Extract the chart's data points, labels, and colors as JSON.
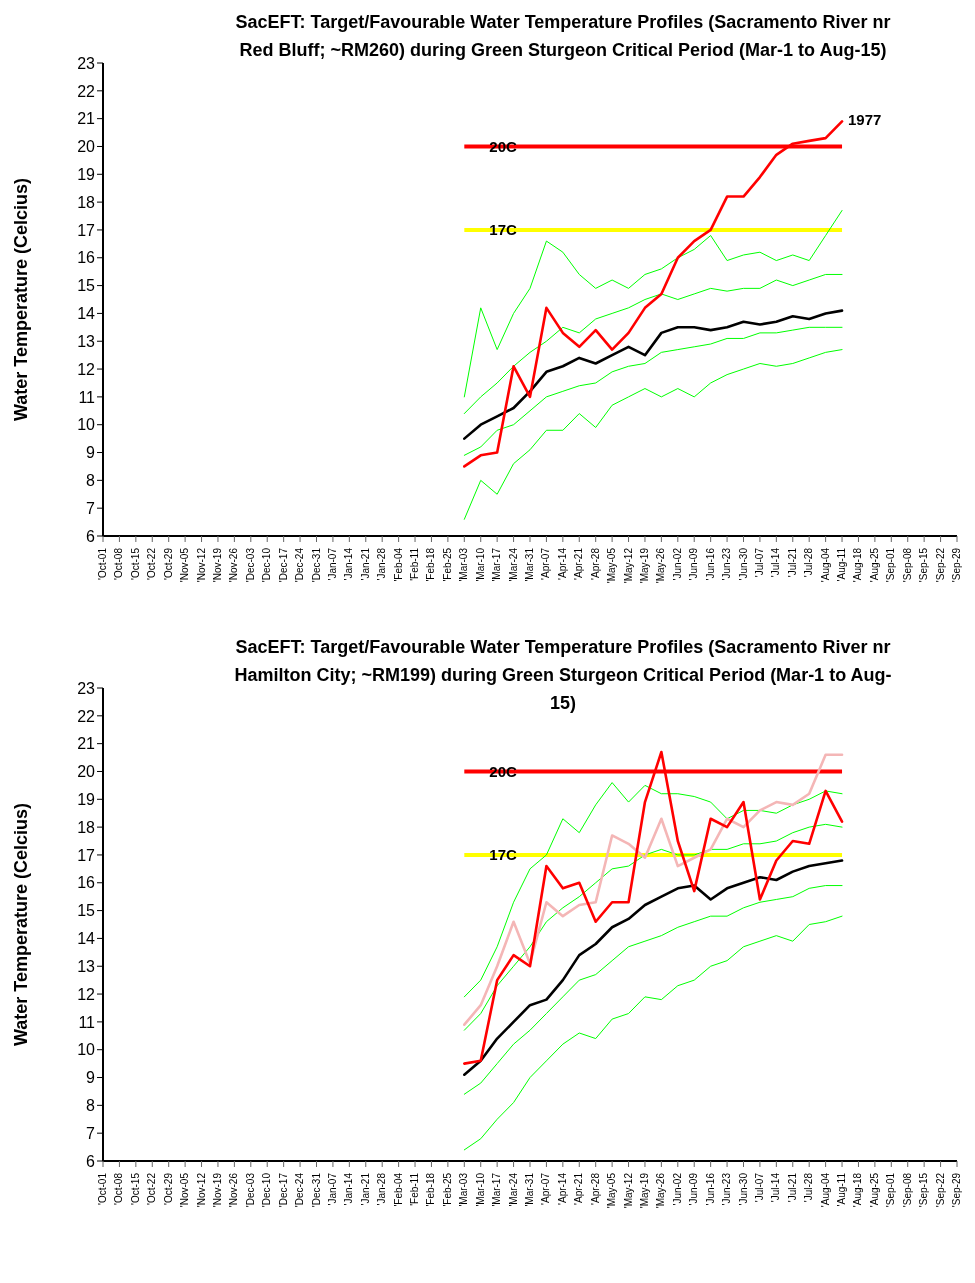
{
  "chart_data": [
    {
      "type": "line",
      "title": "SacEFT: Target/Favourable Water Temperature Profiles (Sacramento River nr Red Bluff; ~RM260) during Green Sturgeon Critical Period (Mar-1 to Aug-15)",
      "ylabel": "Water Temperature (Celcius)",
      "categories": [
        "'Oct-01",
        "'Oct-08",
        "'Oct-15",
        "'Oct-22",
        "'Oct-29",
        "'Nov-05",
        "'Nov-12",
        "'Nov-19",
        "'Nov-26",
        "'Dec-03",
        "'Dec-10",
        "'Dec-17",
        "'Dec-24",
        "'Dec-31",
        "'Jan-07",
        "'Jan-14",
        "'Jan-21",
        "'Jan-28",
        "'Feb-04",
        "'Feb-11",
        "'Feb-18",
        "'Feb-25",
        "'Mar-03",
        "'Mar-10",
        "'Mar-17",
        "'Mar-24",
        "'Mar-31",
        "'Apr-07",
        "'Apr-14",
        "'Apr-21",
        "'Apr-28",
        "'May-05",
        "'May-12",
        "'May-19",
        "'May-26",
        "'Jun-02",
        "'Jun-09",
        "'Jun-16",
        "'Jun-23",
        "'Jun-30",
        "'Jul-07",
        "'Jul-14",
        "'Jul-21",
        "'Jul-28",
        "'Aug-04",
        "'Aug-11",
        "'Aug-18",
        "'Aug-25",
        "'Sep-01",
        "'Sep-08",
        "'Sep-15",
        "'Sep-22",
        "'Sep-29"
      ],
      "series": [
        {
          "type": "line",
          "color": "#00ff00",
          "values": [
            null,
            null,
            null,
            null,
            null,
            null,
            null,
            null,
            null,
            null,
            null,
            null,
            null,
            null,
            null,
            null,
            null,
            null,
            null,
            null,
            null,
            null,
            11.0,
            14.2,
            12.7,
            14.0,
            14.9,
            16.6,
            16.2,
            15.4,
            14.9,
            15.2,
            14.9,
            15.4,
            15.6,
            16.0,
            16.3,
            16.8,
            15.9,
            16.1,
            16.2,
            15.9,
            16.1,
            15.9,
            16.8,
            17.7,
            null,
            null,
            null,
            null,
            null,
            null,
            null
          ]
        },
        {
          "type": "line",
          "color": "#00ff00",
          "values": [
            null,
            null,
            null,
            null,
            null,
            null,
            null,
            null,
            null,
            null,
            null,
            null,
            null,
            null,
            null,
            null,
            null,
            null,
            null,
            null,
            null,
            null,
            6.6,
            8.0,
            7.5,
            8.6,
            9.1,
            9.8,
            9.8,
            10.4,
            9.9,
            10.7,
            11.0,
            11.3,
            11.0,
            11.3,
            11.0,
            11.5,
            11.8,
            12.0,
            12.2,
            12.1,
            12.2,
            12.4,
            12.6,
            12.7,
            null,
            null,
            null,
            null,
            null,
            null,
            null
          ]
        },
        {
          "type": "line",
          "color": "#00ff00",
          "values": [
            null,
            null,
            null,
            null,
            null,
            null,
            null,
            null,
            null,
            null,
            null,
            null,
            null,
            null,
            null,
            null,
            null,
            null,
            null,
            null,
            null,
            null,
            10.4,
            11.0,
            11.5,
            12.1,
            12.6,
            13.0,
            13.5,
            13.3,
            13.8,
            14.0,
            14.2,
            14.5,
            14.7,
            14.5,
            14.7,
            14.9,
            14.8,
            14.9,
            14.9,
            15.2,
            15.0,
            15.2,
            15.4,
            15.4,
            null,
            null,
            null,
            null,
            null,
            null,
            null
          ]
        },
        {
          "type": "line",
          "color": "#00ff00",
          "values": [
            null,
            null,
            null,
            null,
            null,
            null,
            null,
            null,
            null,
            null,
            null,
            null,
            null,
            null,
            null,
            null,
            null,
            null,
            null,
            null,
            null,
            null,
            8.9,
            9.2,
            9.8,
            10.0,
            10.5,
            11.0,
            11.2,
            11.4,
            11.5,
            11.9,
            12.1,
            12.2,
            12.6,
            12.7,
            12.8,
            12.9,
            13.1,
            13.1,
            13.3,
            13.3,
            13.4,
            13.5,
            13.5,
            13.5,
            null,
            null,
            null,
            null,
            null,
            null,
            null
          ]
        },
        {
          "type": "line",
          "color": "#000000",
          "values": [
            null,
            null,
            null,
            null,
            null,
            null,
            null,
            null,
            null,
            null,
            null,
            null,
            null,
            null,
            null,
            null,
            null,
            null,
            null,
            null,
            null,
            null,
            9.5,
            10.0,
            10.3,
            10.6,
            11.2,
            11.9,
            12.1,
            12.4,
            12.2,
            12.5,
            12.8,
            12.5,
            13.3,
            13.5,
            13.5,
            13.4,
            13.5,
            13.7,
            13.6,
            13.7,
            13.9,
            13.8,
            14.0,
            14.1,
            null,
            null,
            null,
            null,
            null,
            null,
            null
          ]
        },
        {
          "type": "line",
          "name": "1977",
          "color": "#ff0000",
          "values": [
            null,
            null,
            null,
            null,
            null,
            null,
            null,
            null,
            null,
            null,
            null,
            null,
            null,
            null,
            null,
            null,
            null,
            null,
            null,
            null,
            null,
            null,
            8.5,
            8.9,
            9.0,
            12.1,
            11.0,
            14.2,
            13.3,
            12.8,
            13.4,
            12.7,
            13.3,
            14.2,
            14.7,
            16.0,
            16.6,
            17.0,
            18.2,
            18.2,
            18.9,
            19.7,
            20.1,
            20.2,
            20.3,
            20.9,
            null,
            null,
            null,
            null,
            null,
            null,
            null
          ]
        }
      ],
      "ylim": [
        6,
        23
      ],
      "yticks": [
        6,
        7,
        8,
        9,
        10,
        11,
        12,
        13,
        14,
        15,
        16,
        17,
        18,
        19,
        20,
        21,
        22,
        23
      ],
      "marker": "none",
      "ref_lines": [
        {
          "axis": "y",
          "value": 20,
          "label": "20C",
          "color": "#ff0000"
        },
        {
          "axis": "y",
          "value": 17,
          "label": "17C",
          "color": "#ffff00"
        }
      ]
    },
    {
      "type": "line",
      "title": "SacEFT: Target/Favourable Water Temperature Profiles (Sacramento River nr Hamilton City; ~RM199) during Green Sturgeon Critical Period (Mar-1 to Aug-15)",
      "ylabel": "Water Temperature (Celcius)",
      "categories": [
        "'Oct-01",
        "'Oct-08",
        "'Oct-15",
        "'Oct-22",
        "'Oct-29",
        "'Nov-05",
        "'Nov-12",
        "'Nov-19",
        "'Nov-26",
        "'Dec-03",
        "'Dec-10",
        "'Dec-17",
        "'Dec-24",
        "'Dec-31",
        "'Jan-07",
        "'Jan-14",
        "'Jan-21",
        "'Jan-28",
        "'Feb-04",
        "'Feb-11",
        "'Feb-18",
        "'Feb-25",
        "'Mar-03",
        "'Mar-10",
        "'Mar-17",
        "'Mar-24",
        "'Mar-31",
        "'Apr-07",
        "'Apr-14",
        "'Apr-21",
        "'Apr-28",
        "'May-05",
        "'May-12",
        "'May-19",
        "'May-26",
        "'Jun-02",
        "'Jun-09",
        "'Jun-16",
        "'Jun-23",
        "'Jun-30",
        "'Jul-07",
        "'Jul-14",
        "'Jul-21",
        "'Jul-28",
        "'Aug-04",
        "'Aug-11",
        "'Aug-18",
        "'Aug-25",
        "'Sep-01",
        "'Sep-08",
        "'Sep-15",
        "'Sep-22",
        "'Sep-29"
      ],
      "series": [
        {
          "type": "line",
          "color": "#00ff00",
          "values": [
            null,
            null,
            null,
            null,
            null,
            null,
            null,
            null,
            null,
            null,
            null,
            null,
            null,
            null,
            null,
            null,
            null,
            null,
            null,
            null,
            null,
            null,
            11.9,
            12.5,
            13.7,
            15.3,
            16.5,
            17.0,
            18.3,
            17.8,
            18.8,
            19.6,
            18.9,
            19.5,
            19.2,
            19.2,
            19.1,
            18.9,
            18.3,
            18.6,
            18.6,
            18.5,
            18.8,
            19.0,
            19.3,
            19.2,
            null,
            null,
            null,
            null,
            null,
            null,
            null
          ]
        },
        {
          "type": "line",
          "color": "#00ff00",
          "values": [
            null,
            null,
            null,
            null,
            null,
            null,
            null,
            null,
            null,
            null,
            null,
            null,
            null,
            null,
            null,
            null,
            null,
            null,
            null,
            null,
            null,
            null,
            6.4,
            6.8,
            7.5,
            8.1,
            9.0,
            9.6,
            10.2,
            10.6,
            10.4,
            11.1,
            11.3,
            11.9,
            11.8,
            12.3,
            12.5,
            13.0,
            13.2,
            13.7,
            13.9,
            14.1,
            13.9,
            14.5,
            14.6,
            14.8,
            null,
            null,
            null,
            null,
            null,
            null,
            null
          ]
        },
        {
          "type": "line",
          "color": "#00ff00",
          "values": [
            null,
            null,
            null,
            null,
            null,
            null,
            null,
            null,
            null,
            null,
            null,
            null,
            null,
            null,
            null,
            null,
            null,
            null,
            null,
            null,
            null,
            null,
            10.7,
            11.3,
            12.3,
            13.0,
            13.7,
            14.6,
            15.1,
            15.5,
            16.0,
            16.5,
            16.6,
            17.0,
            17.2,
            17.0,
            17.0,
            17.2,
            17.2,
            17.4,
            17.4,
            17.5,
            17.8,
            18.0,
            18.1,
            18.0,
            null,
            null,
            null,
            null,
            null,
            null,
            null
          ]
        },
        {
          "type": "line",
          "color": "#00ff00",
          "values": [
            null,
            null,
            null,
            null,
            null,
            null,
            null,
            null,
            null,
            null,
            null,
            null,
            null,
            null,
            null,
            null,
            null,
            null,
            null,
            null,
            null,
            null,
            8.4,
            8.8,
            9.5,
            10.2,
            10.7,
            11.3,
            11.9,
            12.5,
            12.7,
            13.2,
            13.7,
            13.9,
            14.1,
            14.4,
            14.6,
            14.8,
            14.8,
            15.1,
            15.3,
            15.4,
            15.5,
            15.8,
            15.9,
            15.9,
            null,
            null,
            null,
            null,
            null,
            null,
            null
          ]
        },
        {
          "type": "line",
          "color": "#f4b6b6",
          "values": [
            null,
            null,
            null,
            null,
            null,
            null,
            null,
            null,
            null,
            null,
            null,
            null,
            null,
            null,
            null,
            null,
            null,
            null,
            null,
            null,
            null,
            null,
            10.9,
            11.6,
            13.0,
            14.6,
            13.1,
            15.3,
            14.8,
            15.2,
            15.3,
            17.7,
            17.4,
            16.9,
            18.3,
            16.6,
            16.9,
            17.2,
            18.3,
            18.0,
            18.6,
            18.9,
            18.8,
            19.2,
            20.6,
            20.6,
            null,
            null,
            null,
            null,
            null,
            null,
            null
          ]
        },
        {
          "type": "line",
          "color": "#000000",
          "values": [
            null,
            null,
            null,
            null,
            null,
            null,
            null,
            null,
            null,
            null,
            null,
            null,
            null,
            null,
            null,
            null,
            null,
            null,
            null,
            null,
            null,
            null,
            9.1,
            9.6,
            10.4,
            11.0,
            11.6,
            11.8,
            12.5,
            13.4,
            13.8,
            14.4,
            14.7,
            15.2,
            15.5,
            15.8,
            15.9,
            15.4,
            15.8,
            16.0,
            16.2,
            16.1,
            16.4,
            16.6,
            16.7,
            16.8,
            null,
            null,
            null,
            null,
            null,
            null,
            null
          ]
        },
        {
          "type": "line",
          "color": "#ff0000",
          "values": [
            null,
            null,
            null,
            null,
            null,
            null,
            null,
            null,
            null,
            null,
            null,
            null,
            null,
            null,
            null,
            null,
            null,
            null,
            null,
            null,
            null,
            null,
            9.5,
            9.6,
            12.5,
            13.4,
            13.0,
            16.6,
            15.8,
            16.0,
            14.6,
            15.3,
            15.3,
            18.9,
            20.7,
            17.5,
            15.7,
            18.3,
            18.0,
            18.9,
            15.4,
            16.8,
            17.5,
            17.4,
            19.3,
            18.2,
            null,
            null,
            null,
            null,
            null,
            null,
            null
          ]
        }
      ],
      "ylim": [
        6,
        23
      ],
      "yticks": [
        6,
        7,
        8,
        9,
        10,
        11,
        12,
        13,
        14,
        15,
        16,
        17,
        18,
        19,
        20,
        21,
        22,
        23
      ],
      "marker": "none",
      "ref_lines": [
        {
          "axis": "y",
          "value": 20,
          "label": "20C",
          "color": "#ff0000"
        },
        {
          "axis": "y",
          "value": 17,
          "label": "17C",
          "color": "#ffff00"
        }
      ]
    }
  ]
}
